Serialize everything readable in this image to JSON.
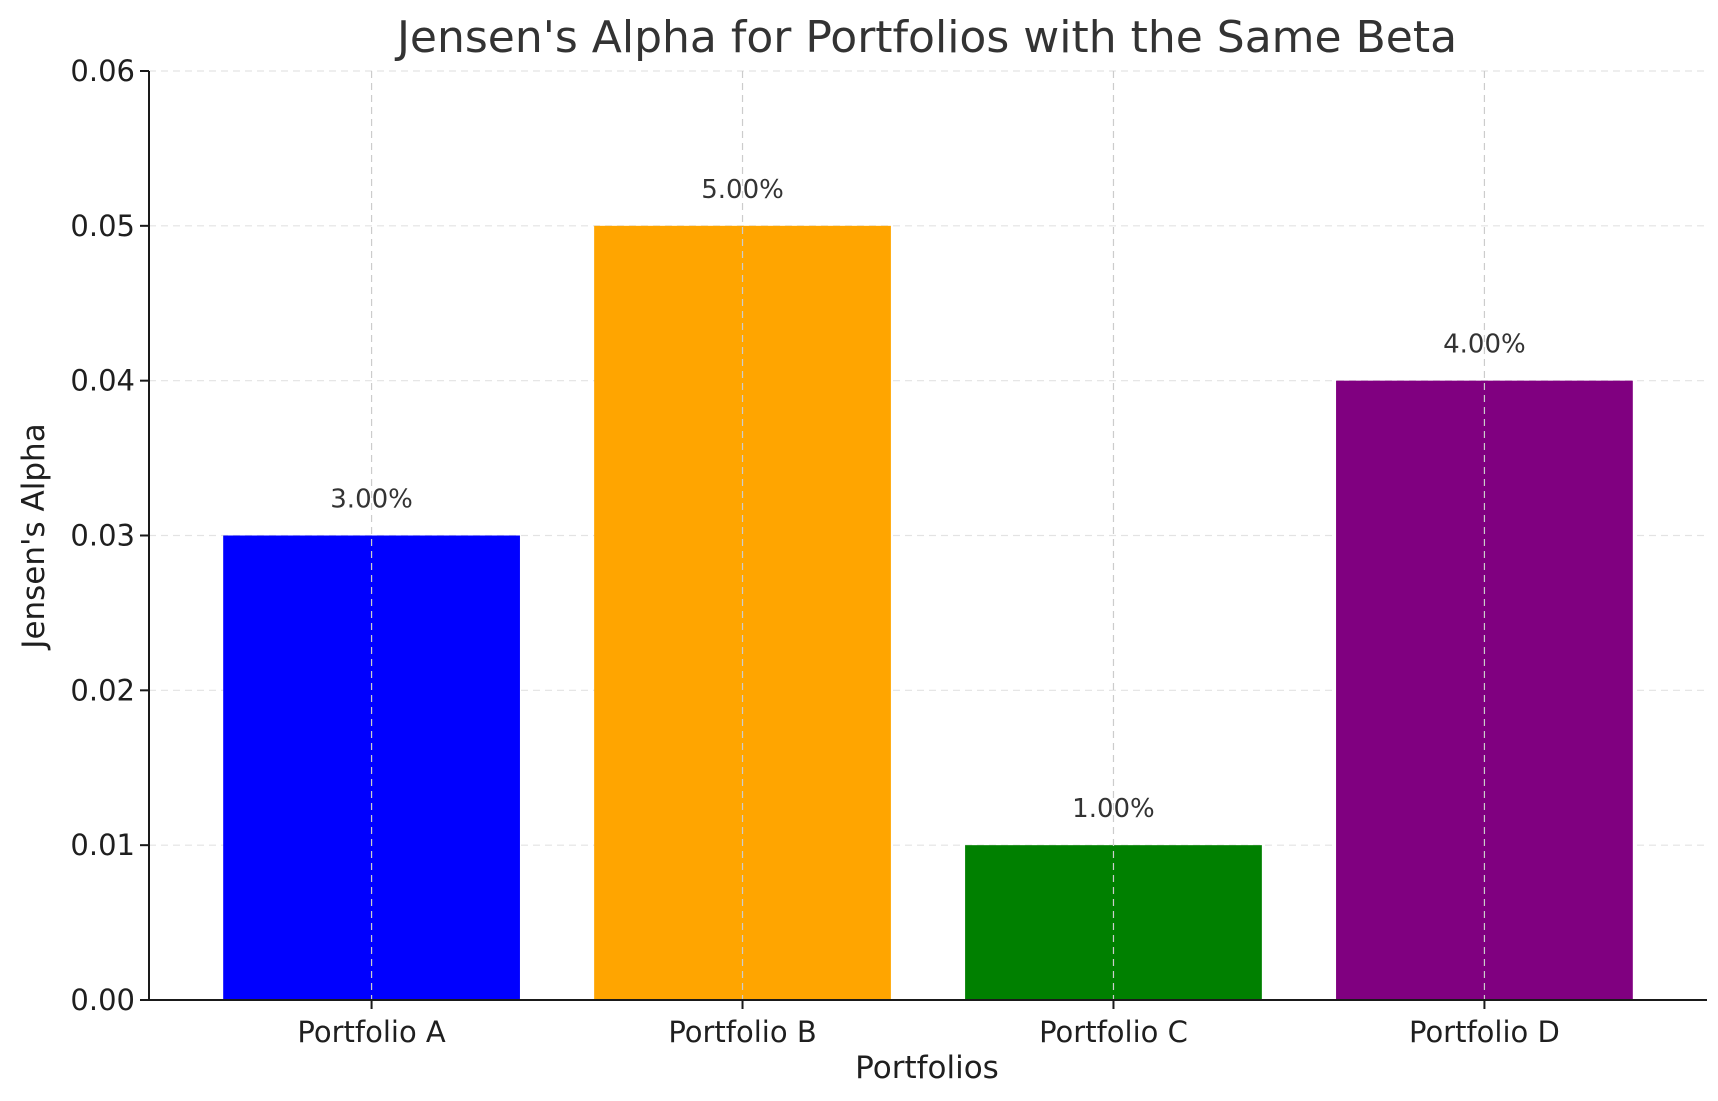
{
  "chart_data": {
    "type": "bar",
    "title": "Jensen's Alpha for Portfolios with the Same Beta",
    "xlabel": "Portfolios",
    "ylabel": "Jensen's Alpha",
    "categories": [
      "Portfolio A",
      "Portfolio B",
      "Portfolio C",
      "Portfolio D"
    ],
    "values": [
      0.03,
      0.05,
      0.01,
      0.04
    ],
    "data_labels": [
      "3.00%",
      "5.00%",
      "1.00%",
      "4.00%"
    ],
    "colors": [
      "#0000ff",
      "#ffa500",
      "#008000",
      "#800080"
    ],
    "ylim": [
      0,
      0.06
    ],
    "yticks": [
      0.0,
      0.01,
      0.02,
      0.03,
      0.04,
      0.05,
      0.06
    ],
    "ytick_labels": [
      "0.00",
      "0.01",
      "0.02",
      "0.03",
      "0.04",
      "0.05",
      "0.06"
    ],
    "grid": true,
    "legend": false
  }
}
